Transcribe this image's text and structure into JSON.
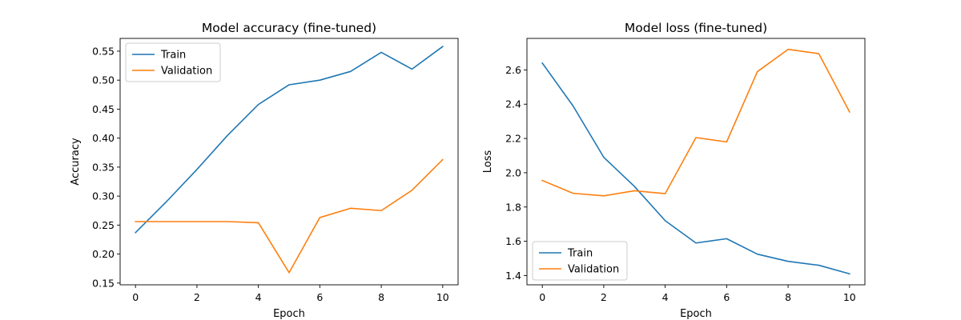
{
  "chart_data": [
    {
      "type": "line",
      "title": "Model accuracy (fine-tuned)",
      "xlabel": "Epoch",
      "ylabel": "Accuracy",
      "xlim": [
        -0.5,
        10.5
      ],
      "ylim": [
        0.147,
        0.572
      ],
      "xticks": [
        0,
        2,
        4,
        6,
        8,
        10
      ],
      "yticks": [
        0.15,
        0.2,
        0.25,
        0.3,
        0.35,
        0.4,
        0.45,
        0.5,
        0.55
      ],
      "ytick_labels": [
        "0.15",
        "0.20",
        "0.25",
        "0.30",
        "0.35",
        "0.40",
        "0.45",
        "0.50",
        "0.55"
      ],
      "grid": false,
      "legend_position": "upper left",
      "x": [
        0,
        1,
        2,
        3,
        4,
        5,
        6,
        7,
        8,
        9,
        10
      ],
      "series": [
        {
          "name": "Train",
          "color": "#1f77b4",
          "values": [
            0.237,
            0.29,
            0.346,
            0.405,
            0.458,
            0.492,
            0.5,
            0.515,
            0.548,
            0.519,
            0.558
          ]
        },
        {
          "name": "Validation",
          "color": "#ff7f0e",
          "values": [
            0.256,
            0.256,
            0.256,
            0.256,
            0.254,
            0.168,
            0.263,
            0.279,
            0.275,
            0.31,
            0.363
          ]
        }
      ]
    },
    {
      "type": "line",
      "title": "Model loss (fine-tuned)",
      "xlabel": "Epoch",
      "ylabel": "Loss",
      "xlim": [
        -0.5,
        10.5
      ],
      "ylim": [
        1.346,
        2.784
      ],
      "xticks": [
        0,
        2,
        4,
        6,
        8,
        10
      ],
      "yticks": [
        1.4,
        1.6,
        1.8,
        2.0,
        2.2,
        2.4,
        2.6
      ],
      "ytick_labels": [
        "1.4",
        "1.6",
        "1.8",
        "2.0",
        "2.2",
        "2.4",
        "2.6"
      ],
      "grid": false,
      "legend_position": "lower left",
      "x": [
        0,
        1,
        2,
        3,
        4,
        5,
        6,
        7,
        8,
        9,
        10
      ],
      "series": [
        {
          "name": "Train",
          "color": "#1f77b4",
          "values": [
            2.64,
            2.39,
            2.09,
            1.92,
            1.72,
            1.59,
            1.615,
            1.525,
            1.483,
            1.46,
            1.41
          ]
        },
        {
          "name": "Validation",
          "color": "#ff7f0e",
          "values": [
            1.955,
            1.88,
            1.865,
            1.895,
            1.878,
            2.205,
            2.18,
            2.59,
            2.72,
            2.695,
            2.355
          ]
        }
      ]
    }
  ]
}
